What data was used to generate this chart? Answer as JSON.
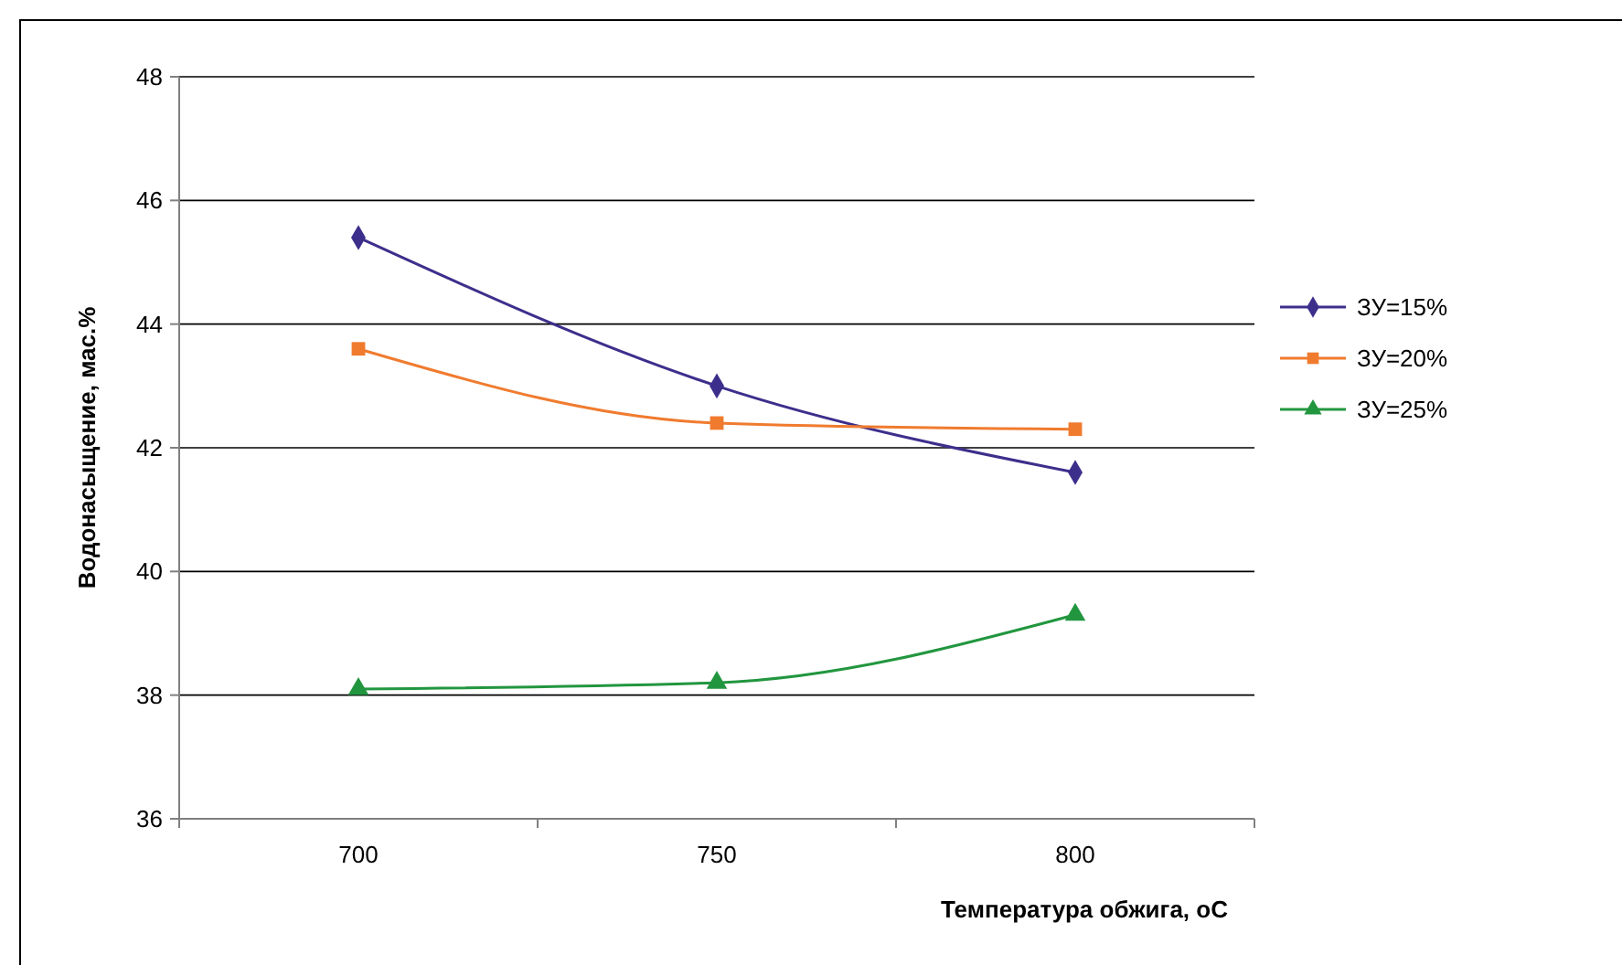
{
  "chart_data": {
    "type": "line",
    "xlabel": "Температура обжига, оС",
    "ylabel": "Водонасыщение, мас.%",
    "categories": [
      "700",
      "750",
      "800"
    ],
    "series": [
      {
        "name": "ЗУ=15%",
        "color": "#3c2f8c",
        "marker": "diamond",
        "values": [
          45.4,
          43.0,
          41.6
        ]
      },
      {
        "name": "ЗУ=20%",
        "color": "#f07b2f",
        "marker": "square",
        "values": [
          43.6,
          42.4,
          42.3
        ]
      },
      {
        "name": "ЗУ=25%",
        "color": "#22963f",
        "marker": "triangle",
        "values": [
          38.1,
          38.2,
          39.3
        ]
      }
    ],
    "ylim": [
      36,
      48
    ],
    "yticks": [
      36,
      38,
      40,
      42,
      44,
      46,
      48
    ],
    "grid": "y",
    "legend": "right"
  }
}
